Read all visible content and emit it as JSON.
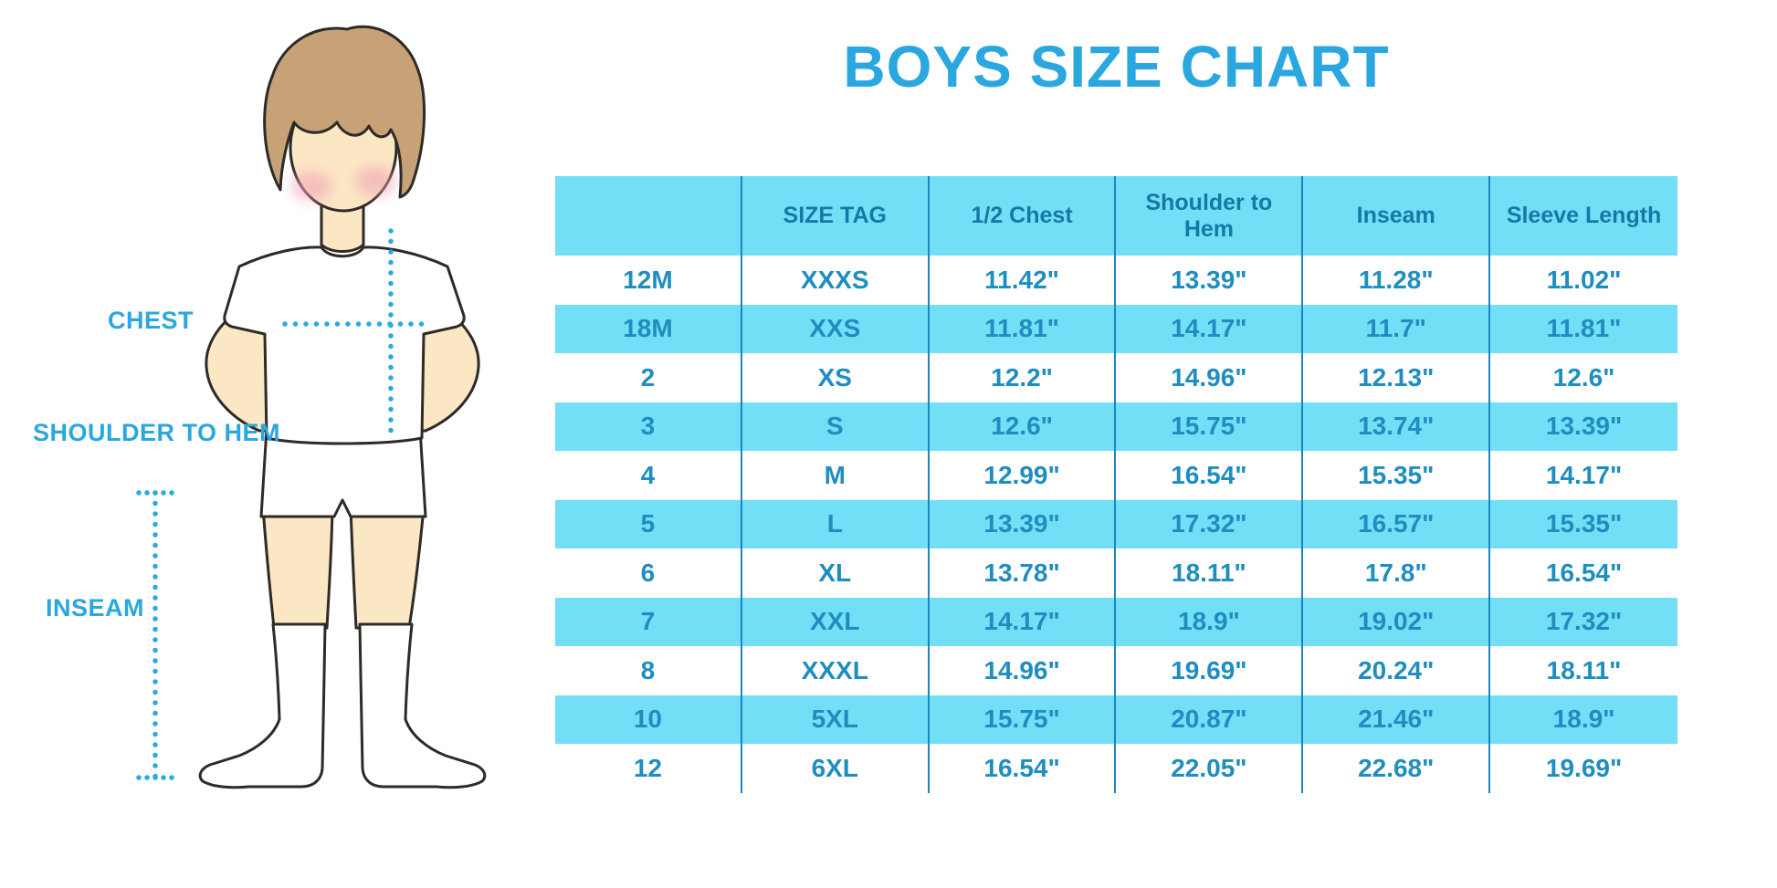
{
  "title": "BOYS SIZE CHART",
  "figure": {
    "labels": {
      "chest": "CHEST",
      "shoulder_to_hem": "SHOULDER TO HEM",
      "inseam": "INSEAM"
    }
  },
  "colors": {
    "title_blue": "#2BA7E0",
    "label_blue": "#2BA7E0",
    "dotted_line_blue": "#29ABE2",
    "header_bg": "#73DFF6",
    "alt_row_bg": "#73DFF6",
    "grid_line": "#1987BD",
    "header_text": "#1579A8",
    "cell_text": "#1E8DC0"
  },
  "chart_data": {
    "type": "table",
    "title": "BOYS SIZE CHART",
    "units": "inches",
    "headers": [
      "",
      "SIZE TAG",
      "1/2 Chest",
      "Shoulder to Hem",
      "Inseam",
      "Sleeve Length"
    ],
    "rows": [
      [
        "12M",
        "XXXS",
        "11.42\"",
        "13.39\"",
        "11.28\"",
        "11.02\""
      ],
      [
        "18M",
        "XXS",
        "11.81\"",
        "14.17\"",
        "11.7\"",
        "11.81\""
      ],
      [
        "2",
        "XS",
        "12.2\"",
        "14.96\"",
        "12.13\"",
        "12.6\""
      ],
      [
        "3",
        "S",
        "12.6\"",
        "15.75\"",
        "13.74\"",
        "13.39\""
      ],
      [
        "4",
        "M",
        "12.99\"",
        "16.54\"",
        "15.35\"",
        "14.17\""
      ],
      [
        "5",
        "L",
        "13.39\"",
        "17.32\"",
        "16.57\"",
        "15.35\""
      ],
      [
        "6",
        "XL",
        "13.78\"",
        "18.11\"",
        "17.8\"",
        "16.54\""
      ],
      [
        "7",
        "XXL",
        "14.17\"",
        "18.9\"",
        "19.02\"",
        "17.32\""
      ],
      [
        "8",
        "XXXL",
        "14.96\"",
        "19.69\"",
        "20.24\"",
        "18.11\""
      ],
      [
        "10",
        "5XL",
        "15.75\"",
        "20.87\"",
        "21.46\"",
        "18.9\""
      ],
      [
        "12",
        "6XL",
        "16.54\"",
        "22.05\"",
        "22.68\"",
        "19.69\""
      ]
    ],
    "row_striping": [
      "#FFFFFF",
      "#73DFF6"
    ]
  }
}
